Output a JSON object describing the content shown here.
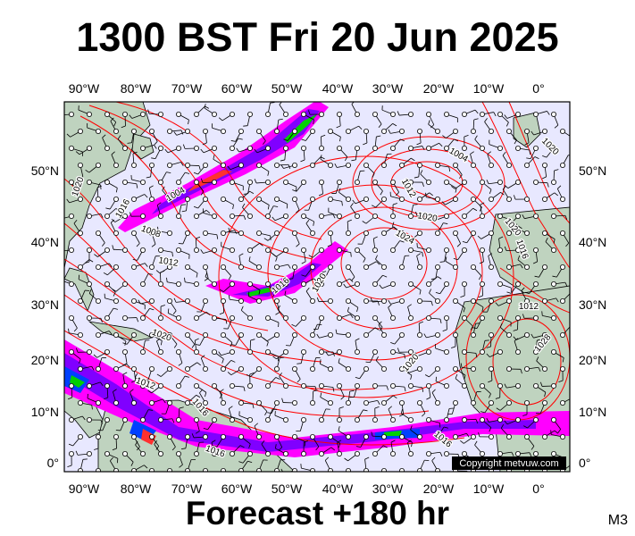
{
  "header": {
    "title": "1300 BST Fri 20 Jun 2025"
  },
  "footer": {
    "forecast": "Forecast +180 hr",
    "model": "M3"
  },
  "map": {
    "longitude_labels": [
      "90°W",
      "80°W",
      "70°W",
      "60°W",
      "50°W",
      "40°W",
      "30°W",
      "20°W",
      "10°W",
      "0°"
    ],
    "latitude_labels": [
      "50°N",
      "40°N",
      "30°N",
      "20°N",
      "10°N",
      "0°"
    ],
    "copyright": "Copyright metvuw.com",
    "pressure_labels": [
      "1004",
      "1008",
      "1012",
      "1016",
      "1020",
      "1024",
      "1028"
    ],
    "colors": {
      "ocean": "#e8e8ff",
      "land": "#bfd3bf",
      "isobar": "#ff0000",
      "rain_light": "#ff00ff",
      "rain_moderate": "#8000ff",
      "rain_heavy": "#00d000",
      "wind_barb": "#000000"
    }
  }
}
